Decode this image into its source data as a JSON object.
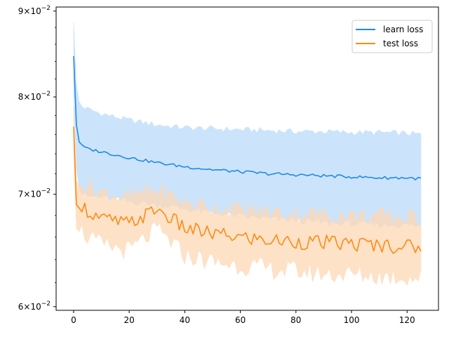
{
  "chart_data": {
    "type": "line",
    "title": "",
    "xlabel": "",
    "ylabel": "",
    "xlim": [
      -6.3,
      131.3
    ],
    "ylim": [
      0.0597,
      0.0905
    ],
    "yscale": "log",
    "grid": false,
    "legend_position": "upper right",
    "x_ticks": [
      0,
      20,
      40,
      60,
      80,
      100,
      120
    ],
    "x_tick_labels": [
      "0",
      "20",
      "40",
      "60",
      "80",
      "100",
      "120"
    ],
    "y_ticks": [
      {
        "value": 0.06,
        "base": "6",
        "exp": "−2"
      },
      {
        "value": 0.07,
        "base": "7",
        "exp": "−2"
      },
      {
        "value": 0.08,
        "base": "8",
        "exp": "−2"
      },
      {
        "value": 0.09,
        "base": "9",
        "exp": "−2"
      }
    ],
    "y_tick_mult": "×10",
    "series": [
      {
        "name": "learn loss",
        "color": "#1f8ae8",
        "band_color": "#cce4fb",
        "points": [
          [
            0,
            0.0846
          ],
          [
            1,
            0.077
          ],
          [
            2,
            0.0752
          ],
          [
            3,
            0.0748
          ],
          [
            5,
            0.0745
          ],
          [
            10,
            0.0742
          ],
          [
            20,
            0.0736
          ],
          [
            30,
            0.0731
          ],
          [
            40,
            0.0727
          ],
          [
            50,
            0.0724
          ],
          [
            60,
            0.0722
          ],
          [
            70,
            0.072
          ],
          [
            80,
            0.0719
          ],
          [
            90,
            0.0718
          ],
          [
            100,
            0.0717
          ],
          [
            110,
            0.0716
          ],
          [
            120,
            0.0716
          ],
          [
            125,
            0.0715
          ]
        ],
        "band_upper": [
          [
            0,
            0.0886
          ],
          [
            1,
            0.0815
          ],
          [
            2,
            0.0795
          ],
          [
            3,
            0.079
          ],
          [
            5,
            0.0787
          ],
          [
            10,
            0.0782
          ],
          [
            20,
            0.0775
          ],
          [
            30,
            0.077
          ],
          [
            40,
            0.0767
          ],
          [
            50,
            0.0766
          ],
          [
            60,
            0.0765
          ],
          [
            70,
            0.0764
          ],
          [
            80,
            0.0763
          ],
          [
            90,
            0.0763
          ],
          [
            100,
            0.0762
          ],
          [
            110,
            0.0762
          ],
          [
            120,
            0.0761
          ],
          [
            125,
            0.076
          ]
        ],
        "band_lower": [
          [
            0,
            0.0806
          ],
          [
            1,
            0.0725
          ],
          [
            2,
            0.0705
          ],
          [
            3,
            0.07
          ],
          [
            5,
            0.0698
          ],
          [
            10,
            0.0697
          ],
          [
            20,
            0.0693
          ],
          [
            30,
            0.069
          ],
          [
            40,
            0.0686
          ],
          [
            50,
            0.0682
          ],
          [
            60,
            0.0679
          ],
          [
            70,
            0.0677
          ],
          [
            80,
            0.0675
          ],
          [
            90,
            0.0673
          ],
          [
            100,
            0.0672
          ],
          [
            110,
            0.0671
          ],
          [
            120,
            0.0671
          ],
          [
            125,
            0.067
          ]
        ]
      },
      {
        "name": "test loss",
        "color": "#ff8a12",
        "band_color": "#fed8b6",
        "points": [
          [
            0,
            0.0768
          ],
          [
            1,
            0.069
          ],
          [
            2,
            0.0687
          ],
          [
            3,
            0.069
          ],
          [
            5,
            0.0684
          ],
          [
            10,
            0.0677
          ],
          [
            20,
            0.0672
          ],
          [
            30,
            0.0686
          ],
          [
            40,
            0.0668
          ],
          [
            50,
            0.0663
          ],
          [
            60,
            0.066
          ],
          [
            70,
            0.0657
          ],
          [
            80,
            0.0656
          ],
          [
            90,
            0.0655
          ],
          [
            100,
            0.0654
          ],
          [
            110,
            0.0653
          ],
          [
            120,
            0.0652
          ],
          [
            125,
            0.0651
          ]
        ],
        "band_upper": [
          [
            0,
            0.079
          ],
          [
            1,
            0.0712
          ],
          [
            2,
            0.071
          ],
          [
            3,
            0.0714
          ],
          [
            5,
            0.0708
          ],
          [
            10,
            0.0702
          ],
          [
            20,
            0.0697
          ],
          [
            30,
            0.0705
          ],
          [
            40,
            0.0692
          ],
          [
            50,
            0.0688
          ],
          [
            60,
            0.0685
          ],
          [
            70,
            0.0683
          ],
          [
            80,
            0.0682
          ],
          [
            90,
            0.0681
          ],
          [
            100,
            0.068
          ],
          [
            110,
            0.0679
          ],
          [
            120,
            0.0678
          ],
          [
            125,
            0.0677
          ]
        ],
        "band_lower": [
          [
            0,
            0.0746
          ],
          [
            1,
            0.0668
          ],
          [
            2,
            0.0665
          ],
          [
            3,
            0.0666
          ],
          [
            5,
            0.066
          ],
          [
            10,
            0.0653
          ],
          [
            20,
            0.0648
          ],
          [
            30,
            0.0667
          ],
          [
            40,
            0.0644
          ],
          [
            50,
            0.0638
          ],
          [
            60,
            0.0635
          ],
          [
            70,
            0.0632
          ],
          [
            80,
            0.063
          ],
          [
            90,
            0.0628
          ],
          [
            100,
            0.0627
          ],
          [
            110,
            0.0626
          ],
          [
            120,
            0.0625
          ],
          [
            125,
            0.0624
          ]
        ]
      }
    ]
  }
}
